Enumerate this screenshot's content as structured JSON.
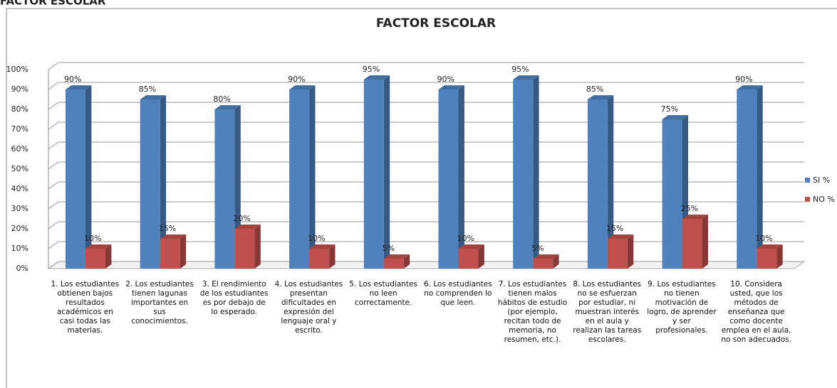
{
  "heading": "FACTOR ESCOLAR",
  "chart_data": {
    "type": "bar3d",
    "title": "FACTOR ESCOLAR",
    "categories": [
      "1. Los estudiantes obtienen bajos resultados académicos en casi todas las materias.",
      "2. Los estudiantes tienen lagunas importantes en sus conocimientos.",
      "3. El rendimiento de los estudiantes es por debajo de lo esperado.",
      "4. Los estudiantes presentan dificultades en expresión del lenguaje oral y escrito.",
      "5. Los estudiantes no leen correctamente.",
      "6. Los estudiantes no comprenden lo que leen.",
      "7. Los estudiantes tienen malos hábitos de estudio (por ejemplo, recitan todo de memoria, no resumen, etc.).",
      "8. Los estudiantes no se esfuerzan por estudiar, ni muestran interés en el aula y realizan las tareas escolares.",
      "9. Los estudiantes no tienen motivación de logro, de aprender y ser profesionales.",
      "10. Considera usted, que los métodos de enseñanza que como docente emplea en el aula, no son adecuados."
    ],
    "series": [
      {
        "name": "SI %",
        "color": "#4f81bd",
        "values": [
          90,
          85,
          80,
          90,
          95,
          90,
          95,
          85,
          75,
          90
        ],
        "value_labels": [
          "90%",
          "85%",
          "80%",
          "90%",
          "95%",
          "90%",
          "95%",
          "85%",
          "75%",
          "90%"
        ]
      },
      {
        "name": "NO %",
        "color": "#c0504d",
        "values": [
          10,
          15,
          20,
          10,
          5,
          10,
          5,
          15,
          25,
          10
        ],
        "value_labels": [
          "10%",
          "15%",
          "20%",
          "10%",
          "5%",
          "10%",
          "5%",
          "15%",
          "25%",
          "10%"
        ]
      }
    ],
    "ylim": [
      0,
      100
    ],
    "yticks": [
      {
        "value": 0,
        "label": "0%"
      },
      {
        "value": 10,
        "label": "10%"
      },
      {
        "value": 20,
        "label": "20%"
      },
      {
        "value": 30,
        "label": "30%"
      },
      {
        "value": 40,
        "label": "40%"
      },
      {
        "value": 50,
        "label": "50%"
      },
      {
        "value": 60,
        "label": "60%"
      },
      {
        "value": 70,
        "label": "70%"
      },
      {
        "value": 80,
        "label": "80%"
      },
      {
        "value": 90,
        "label": "90%"
      },
      {
        "value": 100,
        "label": "100%"
      }
    ],
    "grid": true,
    "legend": "right"
  }
}
